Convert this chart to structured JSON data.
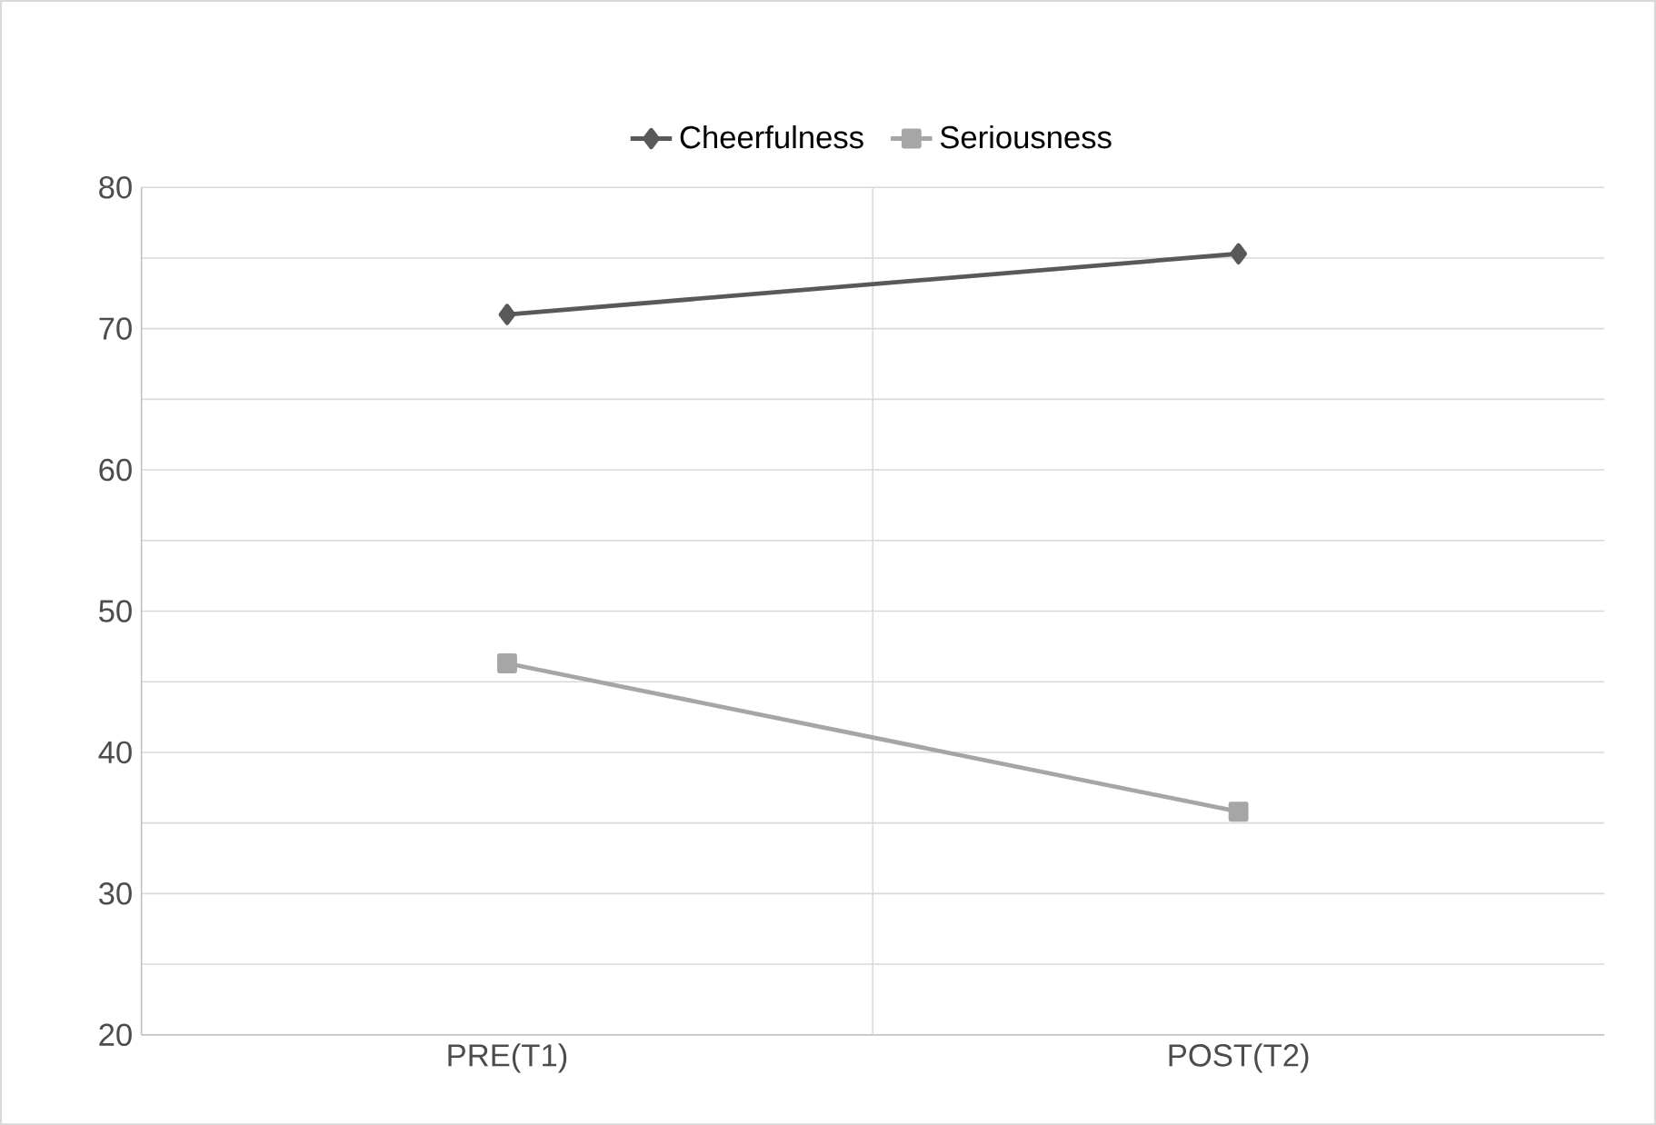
{
  "chart_data": {
    "type": "line",
    "categories": [
      "PRE(T1)",
      "POST(T2)"
    ],
    "series": [
      {
        "name": "Cheerfulness",
        "color": "#595959",
        "marker": "diamond",
        "values": [
          71.0,
          75.3
        ]
      },
      {
        "name": "Seriousness",
        "color": "#a6a6a6",
        "marker": "square",
        "values": [
          46.3,
          35.8
        ]
      }
    ],
    "ylim": [
      20,
      80
    ],
    "yticks": [
      20,
      {
        "value": 25,
        "label": null
      },
      30,
      {
        "value": 35,
        "label": null
      },
      40,
      {
        "value": 45,
        "label": null
      },
      50,
      {
        "value": 55,
        "label": null
      },
      60,
      {
        "value": 65,
        "label": null
      },
      70,
      {
        "value": 75,
        "label": null
      },
      80
    ],
    "grid": true,
    "legend": "top",
    "line_style": "solid"
  }
}
